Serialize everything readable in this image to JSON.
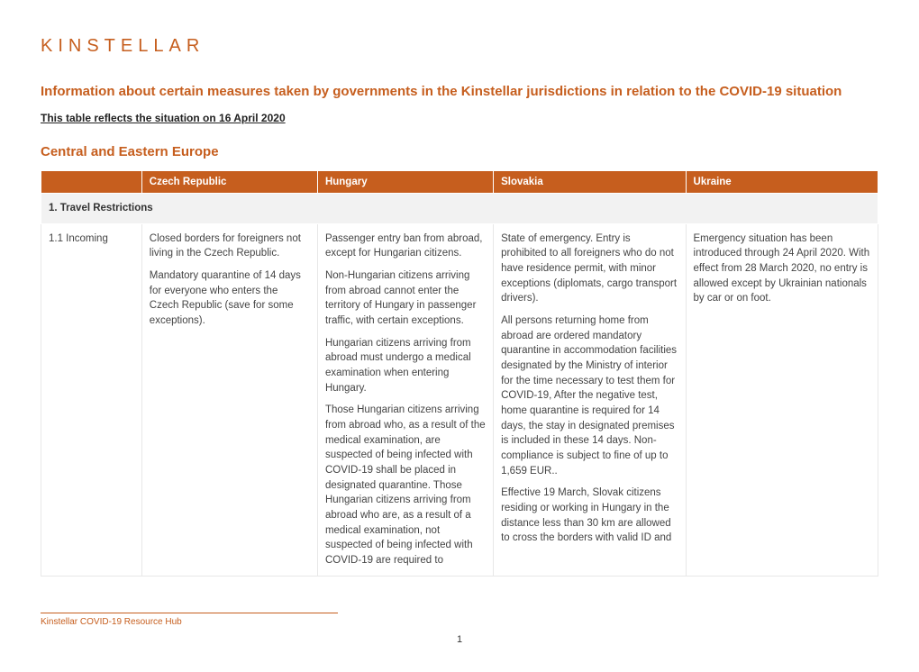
{
  "logo_text": "KINSTELLAR",
  "doc_title": "Information about certain measures taken by governments in the Kinstellar jurisdictions in relation to the COVID-19 situation",
  "subtitle": "This table reflects the situation on 16 April 2020",
  "region_title": "Central and Eastern Europe",
  "columns": [
    "",
    "Czech Republic",
    "Hungary",
    "Slovakia",
    "Ukraine"
  ],
  "section_heading": "1. Travel Restrictions",
  "row_label": "1.1 Incoming",
  "cz_p1": "Closed borders for foreigners not living in the Czech Republic.",
  "cz_p2": "Mandatory quarantine of 14 days for everyone who enters the Czech Republic (save for some exceptions).",
  "hu_p1": "Passenger entry ban from abroad, except for Hungarian citizens.",
  "hu_p2": "Non-Hungarian citizens arriving from abroad cannot enter the territory of Hungary in passenger traffic, with certain exceptions.",
  "hu_p3": "Hungarian citizens arriving from abroad must undergo a medical examination when entering Hungary.",
  "hu_p4": "Those Hungarian citizens arriving from abroad who, as a result of the medical examination, are suspected of being infected with COVID-19 shall be placed in designated quarantine. Those Hungarian citizens arriving from abroad who are, as a result of a medical examination, not suspected of being infected with COVID-19 are required to",
  "sk_p1": "State of emergency. Entry is prohibited to all foreigners who do not have residence permit, with minor exceptions (diplomats, cargo transport drivers).",
  "sk_p2": "All persons returning home from abroad are ordered mandatory quarantine in accommodation facilities designated by the Ministry of interior for the time necessary to test them for COVID-19, After the negative test, home quarantine is required for 14 days, the stay in designated premises is included in these 14 days. Non-compliance is subject to fine of up to 1,659 EUR..",
  "sk_p3": "Effective 19 March, Slovak citizens residing or working in Hungary in the distance less than 30 km are allowed to cross the borders with valid ID and",
  "ua_p1": "Emergency situation has been introduced through 24 April 2020. With effect from 28 March 2020, no entry is allowed except by Ukrainian nationals by car or on foot.",
  "footer_text": "Kinstellar COVID-19 Resource Hub",
  "page_number": "1",
  "colors": {
    "brand": "#c65e1e",
    "section_bg": "#f2f2f2",
    "cell_border": "#e8e8e8",
    "text": "#333333"
  }
}
